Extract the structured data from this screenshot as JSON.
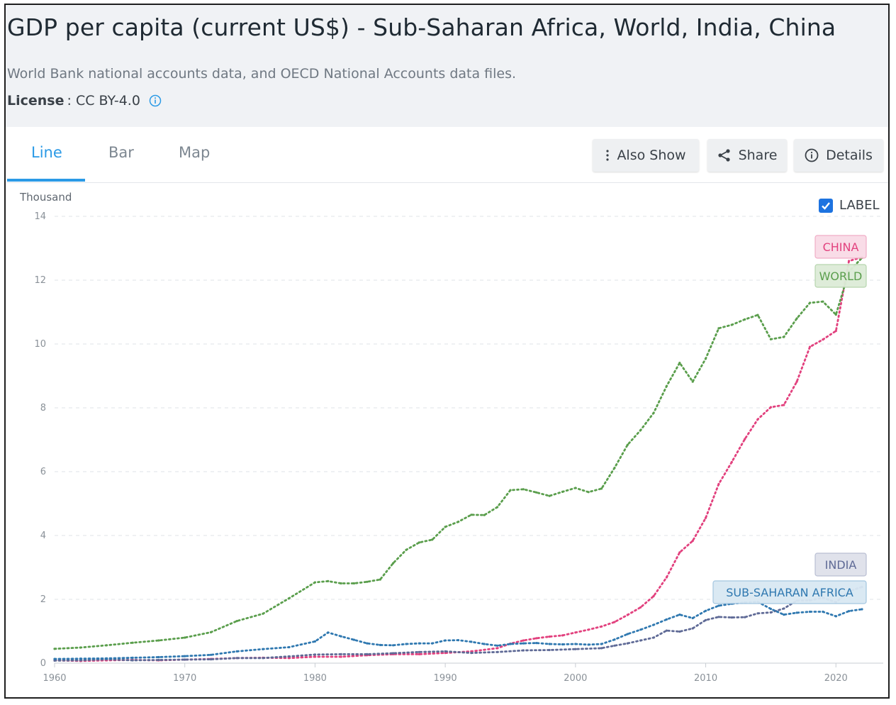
{
  "header": {
    "title": "GDP per capita (current US$) - Sub-Saharan Africa, World, India, China",
    "source": "World Bank national accounts data, and OECD National Accounts data files.",
    "license_key": "License",
    "license_value": ": CC BY-4.0",
    "license_icon": "info-icon"
  },
  "tabs": [
    {
      "label": "Line",
      "active": true
    },
    {
      "label": "Bar",
      "active": false
    },
    {
      "label": "Map",
      "active": false
    }
  ],
  "buttons": {
    "also_show": {
      "label": "Also Show",
      "icon": "kebab-icon"
    },
    "share": {
      "label": "Share",
      "icon": "share-icon"
    },
    "details": {
      "label": "Details",
      "icon": "info-icon"
    }
  },
  "label_toggle": {
    "label": "LABEL",
    "checked": true
  },
  "colors": {
    "accent": "#2b9ae6",
    "china": "#e2417e",
    "world": "#5a9e4c",
    "india": "#5f6a96",
    "ssa": "#2f78b0"
  },
  "chart_data": {
    "type": "line",
    "title": "GDP per capita (current US$) - Sub-Saharan Africa, World, India, China",
    "ylabel": "Thousand",
    "xlabel": "",
    "ylim": [
      0,
      14
    ],
    "xlim": [
      1960,
      2022
    ],
    "x_ticks": [
      1960,
      1970,
      1980,
      1990,
      2000,
      2010,
      2020
    ],
    "y_ticks": [
      0,
      2,
      4,
      6,
      8,
      10,
      12,
      14
    ],
    "grid": true,
    "series": [
      {
        "name": "CHINA",
        "color": "#e2417e",
        "x": [
          1960,
          1962,
          1964,
          1966,
          1968,
          1970,
          1972,
          1974,
          1976,
          1978,
          1980,
          1982,
          1984,
          1986,
          1988,
          1990,
          1992,
          1994,
          1995,
          1996,
          1997,
          1998,
          1999,
          2000,
          2001,
          2002,
          2003,
          2004,
          2005,
          2006,
          2007,
          2008,
          2009,
          2010,
          2011,
          2012,
          2013,
          2014,
          2015,
          2016,
          2017,
          2018,
          2019,
          2020,
          2021,
          2022
        ],
        "y": [
          0.09,
          0.07,
          0.09,
          0.1,
          0.09,
          0.11,
          0.13,
          0.16,
          0.17,
          0.16,
          0.2,
          0.2,
          0.25,
          0.28,
          0.28,
          0.32,
          0.37,
          0.47,
          0.61,
          0.71,
          0.78,
          0.83,
          0.87,
          0.96,
          1.05,
          1.15,
          1.29,
          1.51,
          1.75,
          2.1,
          2.69,
          3.47,
          3.83,
          4.55,
          5.61,
          6.3,
          7.02,
          7.64,
          8.02,
          8.09,
          8.82,
          9.91,
          10.14,
          10.41,
          12.6,
          12.72
        ]
      },
      {
        "name": "WORLD",
        "color": "#5a9e4c",
        "x": [
          1960,
          1962,
          1964,
          1966,
          1968,
          1970,
          1972,
          1974,
          1976,
          1978,
          1980,
          1981,
          1982,
          1983,
          1984,
          1985,
          1986,
          1987,
          1988,
          1989,
          1990,
          1991,
          1992,
          1993,
          1994,
          1995,
          1996,
          1997,
          1998,
          1999,
          2000,
          2001,
          2002,
          2003,
          2004,
          2005,
          2006,
          2007,
          2008,
          2009,
          2010,
          2011,
          2012,
          2013,
          2014,
          2015,
          2016,
          2017,
          2018,
          2019,
          2020,
          2021,
          2022
        ],
        "y": [
          0.45,
          0.49,
          0.56,
          0.64,
          0.71,
          0.8,
          0.97,
          1.32,
          1.55,
          2.03,
          2.53,
          2.57,
          2.5,
          2.5,
          2.55,
          2.62,
          3.13,
          3.55,
          3.78,
          3.87,
          4.27,
          4.43,
          4.65,
          4.64,
          4.89,
          5.42,
          5.45,
          5.35,
          5.24,
          5.37,
          5.49,
          5.36,
          5.47,
          6.12,
          6.84,
          7.3,
          7.84,
          8.68,
          9.41,
          8.82,
          9.54,
          10.49,
          10.6,
          10.77,
          10.91,
          10.15,
          10.22,
          10.8,
          11.29,
          11.33,
          10.92,
          12.27,
          12.7
        ]
      },
      {
        "name": "INDIA",
        "color": "#5f6a96",
        "x": [
          1960,
          1962,
          1964,
          1966,
          1968,
          1970,
          1972,
          1974,
          1976,
          1978,
          1980,
          1982,
          1984,
          1986,
          1988,
          1990,
          1992,
          1994,
          1996,
          1998,
          2000,
          2002,
          2003,
          2004,
          2005,
          2006,
          2007,
          2008,
          2009,
          2010,
          2011,
          2012,
          2013,
          2014,
          2015,
          2016,
          2017,
          2018,
          2019,
          2020,
          2021,
          2022
        ],
        "y": [
          0.08,
          0.09,
          0.12,
          0.09,
          0.1,
          0.11,
          0.12,
          0.16,
          0.16,
          0.21,
          0.27,
          0.28,
          0.28,
          0.31,
          0.35,
          0.37,
          0.32,
          0.35,
          0.4,
          0.41,
          0.44,
          0.47,
          0.55,
          0.62,
          0.71,
          0.8,
          1.02,
          0.99,
          1.09,
          1.35,
          1.45,
          1.43,
          1.44,
          1.56,
          1.59,
          1.71,
          1.96,
          1.97,
          2.05,
          1.91,
          2.25,
          2.39
        ]
      },
      {
        "name": "SUB-SAHARAN AFRICA",
        "color": "#2f78b0",
        "x": [
          1960,
          1962,
          1964,
          1966,
          1968,
          1970,
          1972,
          1974,
          1976,
          1978,
          1980,
          1981,
          1982,
          1983,
          1984,
          1985,
          1986,
          1987,
          1988,
          1989,
          1990,
          1991,
          1992,
          1993,
          1994,
          1995,
          1996,
          1997,
          1998,
          1999,
          2000,
          2001,
          2002,
          2003,
          2004,
          2005,
          2006,
          2007,
          2008,
          2009,
          2010,
          2011,
          2012,
          2013,
          2014,
          2015,
          2016,
          2017,
          2018,
          2019,
          2020,
          2021,
          2022
        ],
        "y": [
          0.13,
          0.14,
          0.15,
          0.17,
          0.19,
          0.22,
          0.26,
          0.37,
          0.44,
          0.5,
          0.68,
          0.96,
          0.84,
          0.73,
          0.62,
          0.57,
          0.56,
          0.6,
          0.62,
          0.62,
          0.71,
          0.72,
          0.67,
          0.6,
          0.55,
          0.6,
          0.62,
          0.63,
          0.6,
          0.59,
          0.6,
          0.58,
          0.6,
          0.74,
          0.91,
          1.05,
          1.2,
          1.37,
          1.52,
          1.41,
          1.64,
          1.8,
          1.86,
          1.9,
          1.92,
          1.7,
          1.52,
          1.58,
          1.61,
          1.61,
          1.47,
          1.63,
          1.69
        ]
      }
    ],
    "labels": [
      "CHINA",
      "WORLD",
      "INDIA",
      "SUB-SAHARAN AFRICA"
    ]
  }
}
